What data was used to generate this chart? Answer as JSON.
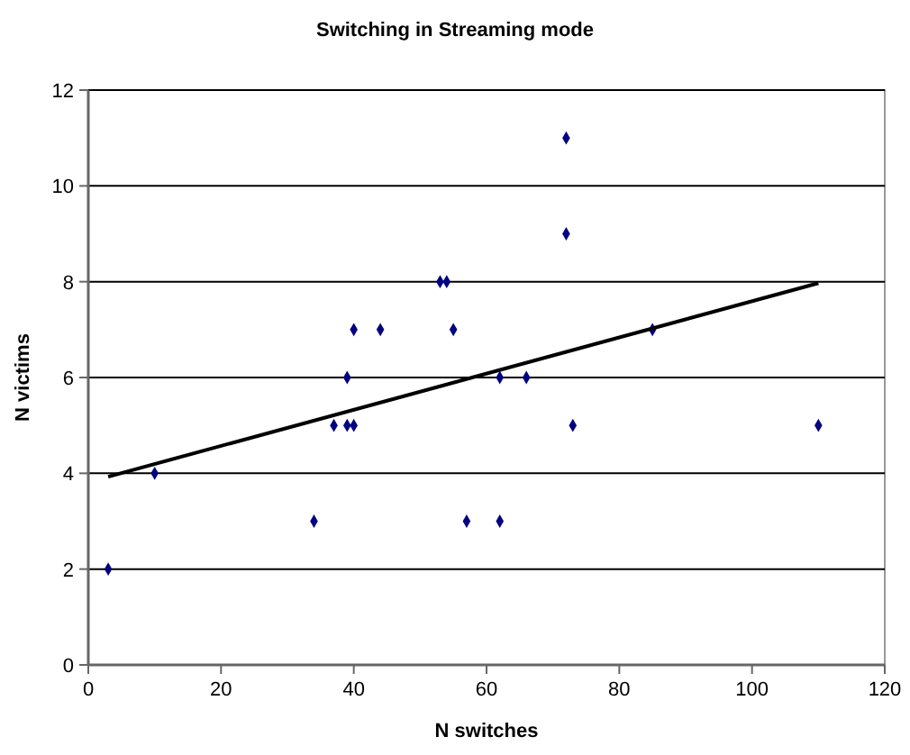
{
  "chart_data": {
    "type": "scatter",
    "title": "Switching in Streaming mode",
    "xlabel": "N switches",
    "ylabel": "N victims",
    "xlim": [
      0,
      120
    ],
    "xticks": [
      0,
      20,
      40,
      60,
      80,
      100,
      120
    ],
    "ylim": [
      0,
      12
    ],
    "yticks": [
      0,
      2,
      4,
      6,
      8,
      10,
      12
    ],
    "grid": "y",
    "series": [
      {
        "color": "#000080",
        "marker": "diamond",
        "x": [
          3,
          10,
          34,
          37,
          39,
          39,
          40,
          40,
          44,
          53,
          54,
          55,
          57,
          62,
          62,
          66,
          72,
          72,
          73,
          85,
          110
        ],
        "values": [
          2,
          4,
          3,
          5,
          6,
          5,
          5,
          7,
          7,
          8,
          8,
          7,
          3,
          3,
          6,
          6,
          11,
          9,
          5,
          7,
          5
        ]
      },
      {
        "type": "line",
        "color": "#000000",
        "marker": "none",
        "line_style": "solid",
        "x": [
          3,
          110
        ],
        "values": [
          3.93,
          7.97
        ]
      }
    ]
  }
}
